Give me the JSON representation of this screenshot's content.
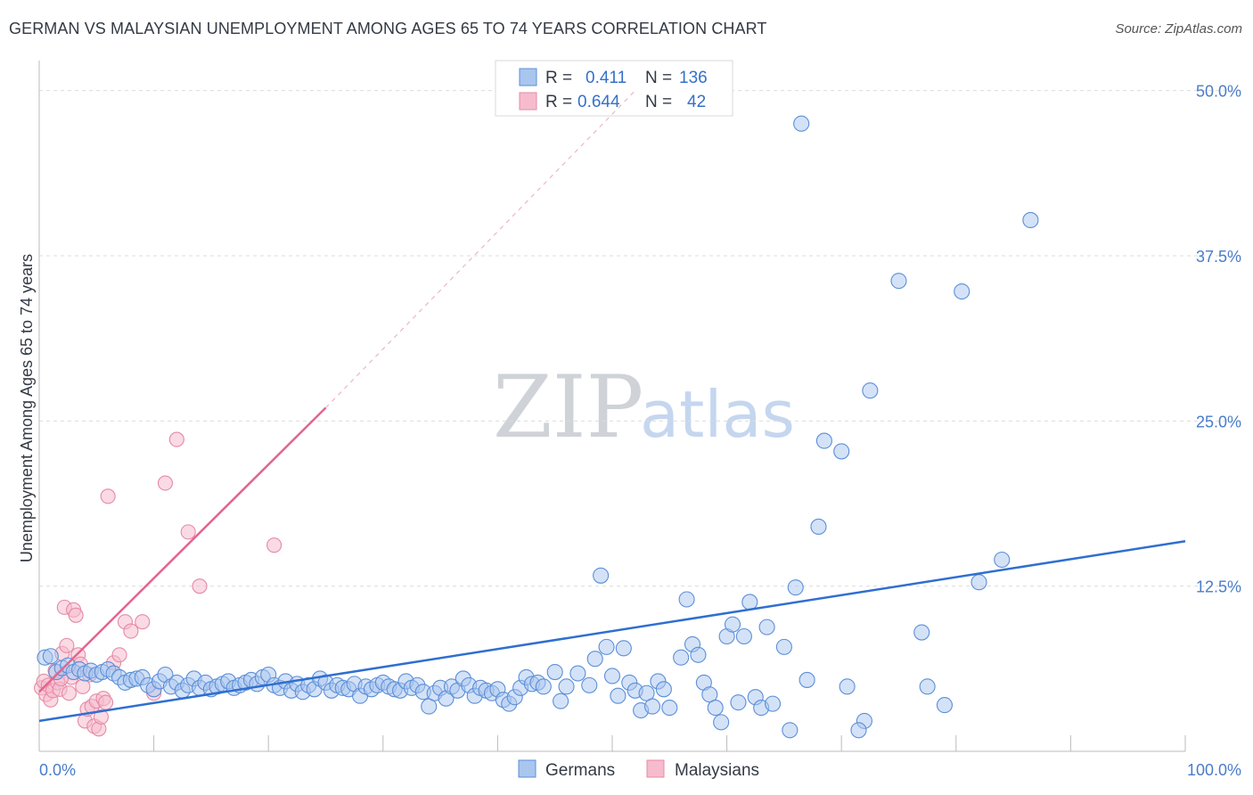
{
  "title": "GERMAN VS MALAYSIAN UNEMPLOYMENT AMONG AGES 65 TO 74 YEARS CORRELATION CHART",
  "source": "Source: ZipAtlas.com",
  "watermark": {
    "zip": "ZIP",
    "atlas": "atlas"
  },
  "legend_top": {
    "r_label": "R =",
    "n_label": "N =",
    "german": {
      "r": "0.411",
      "n": "136"
    },
    "malaysian": {
      "r": "0.644",
      "n": "42"
    }
  },
  "legend_bottom": {
    "german": "Germans",
    "malaysian": "Malaysians"
  },
  "colors": {
    "german_fill": "#a9c6ef",
    "german_stroke": "#5b8fd8",
    "german_line": "#2f6fd0",
    "malaysian_fill": "#f6bccd",
    "malaysian_stroke": "#e58aa6",
    "malaysian_line": "#e4648f",
    "grid": "#dcdcdc",
    "axis_tick_text": "#4a7cc9"
  },
  "chart_data": {
    "type": "scatter",
    "title": "GERMAN VS MALAYSIAN UNEMPLOYMENT AMONG AGES 65 TO 74 YEARS CORRELATION CHART",
    "xlabel": "",
    "ylabel": "Unemployment Among Ages 65 to 74 years",
    "xlim": [
      0,
      100
    ],
    "ylim": [
      0,
      52
    ],
    "x_tick_labels": [
      "0.0%",
      "100.0%"
    ],
    "y_ticks": [
      12.5,
      25.0,
      37.5,
      50.0
    ],
    "y_tick_labels": [
      "12.5%",
      "25.0%",
      "37.5%",
      "50.0%"
    ],
    "grid": true,
    "legend_position": "top-center",
    "series": [
      {
        "name": "Germans",
        "r": 0.411,
        "n": 136,
        "trend": {
          "x": [
            0,
            100
          ],
          "y": [
            2.3,
            15.9
          ]
        },
        "points": [
          [
            0.5,
            7.1
          ],
          [
            1.0,
            7.2
          ],
          [
            1.5,
            6.0
          ],
          [
            2.0,
            6.3
          ],
          [
            2.5,
            6.5
          ],
          [
            3.0,
            6.0
          ],
          [
            3.5,
            6.2
          ],
          [
            4.0,
            5.9
          ],
          [
            4.5,
            6.1
          ],
          [
            5.0,
            5.8
          ],
          [
            5.5,
            6.0
          ],
          [
            6.0,
            6.2
          ],
          [
            6.5,
            5.9
          ],
          [
            7.0,
            5.6
          ],
          [
            7.5,
            5.2
          ],
          [
            8.0,
            5.4
          ],
          [
            8.5,
            5.5
          ],
          [
            9.0,
            5.6
          ],
          [
            9.5,
            5.0
          ],
          [
            10.0,
            4.7
          ],
          [
            10.5,
            5.3
          ],
          [
            11.0,
            5.8
          ],
          [
            11.5,
            4.9
          ],
          [
            12.0,
            5.2
          ],
          [
            12.5,
            4.6
          ],
          [
            13.0,
            5.0
          ],
          [
            13.5,
            5.5
          ],
          [
            14.0,
            4.8
          ],
          [
            14.5,
            5.2
          ],
          [
            15.0,
            4.7
          ],
          [
            15.5,
            4.9
          ],
          [
            16.0,
            5.1
          ],
          [
            16.5,
            5.3
          ],
          [
            17.0,
            4.8
          ],
          [
            17.5,
            5.0
          ],
          [
            18.0,
            5.2
          ],
          [
            18.5,
            5.4
          ],
          [
            19.0,
            5.1
          ],
          [
            19.5,
            5.6
          ],
          [
            20.0,
            5.8
          ],
          [
            20.5,
            5.0
          ],
          [
            21.0,
            4.8
          ],
          [
            21.5,
            5.3
          ],
          [
            22.0,
            4.6
          ],
          [
            22.5,
            5.1
          ],
          [
            23.0,
            4.5
          ],
          [
            23.5,
            5.0
          ],
          [
            24.0,
            4.7
          ],
          [
            24.5,
            5.5
          ],
          [
            25.0,
            5.2
          ],
          [
            25.5,
            4.6
          ],
          [
            26.0,
            5.0
          ],
          [
            26.5,
            4.8
          ],
          [
            27.0,
            4.7
          ],
          [
            27.5,
            5.1
          ],
          [
            28.0,
            4.2
          ],
          [
            28.5,
            4.9
          ],
          [
            29.0,
            4.7
          ],
          [
            29.5,
            5.0
          ],
          [
            30.0,
            5.2
          ],
          [
            30.5,
            4.9
          ],
          [
            31.0,
            4.7
          ],
          [
            31.5,
            4.6
          ],
          [
            32.0,
            5.3
          ],
          [
            32.5,
            4.8
          ],
          [
            33.0,
            5.0
          ],
          [
            33.5,
            4.5
          ],
          [
            34.0,
            3.4
          ],
          [
            34.5,
            4.4
          ],
          [
            35.0,
            4.8
          ],
          [
            35.5,
            4.0
          ],
          [
            36.0,
            4.9
          ],
          [
            36.5,
            4.6
          ],
          [
            37.0,
            5.5
          ],
          [
            37.5,
            5.0
          ],
          [
            38.0,
            4.2
          ],
          [
            38.5,
            4.8
          ],
          [
            39.0,
            4.6
          ],
          [
            39.5,
            4.4
          ],
          [
            40.0,
            4.7
          ],
          [
            40.5,
            3.9
          ],
          [
            41.0,
            3.6
          ],
          [
            41.5,
            4.1
          ],
          [
            42.0,
            4.8
          ],
          [
            42.5,
            5.6
          ],
          [
            43.0,
            5.1
          ],
          [
            43.5,
            5.2
          ],
          [
            44.0,
            4.9
          ],
          [
            45.0,
            6.0
          ],
          [
            45.5,
            3.8
          ],
          [
            46.0,
            4.9
          ],
          [
            47.0,
            5.9
          ],
          [
            48.0,
            5.0
          ],
          [
            48.5,
            7.0
          ],
          [
            49.0,
            13.3
          ],
          [
            49.5,
            7.9
          ],
          [
            50.0,
            5.7
          ],
          [
            50.5,
            4.2
          ],
          [
            51.0,
            7.8
          ],
          [
            51.5,
            5.2
          ],
          [
            52.0,
            4.6
          ],
          [
            52.5,
            3.1
          ],
          [
            53.0,
            4.4
          ],
          [
            53.5,
            3.4
          ],
          [
            54.0,
            5.3
          ],
          [
            54.5,
            4.7
          ],
          [
            55.0,
            3.3
          ],
          [
            56.0,
            7.1
          ],
          [
            56.5,
            11.5
          ],
          [
            57.0,
            8.1
          ],
          [
            57.5,
            7.3
          ],
          [
            58.0,
            5.2
          ],
          [
            58.5,
            4.3
          ],
          [
            59.0,
            3.3
          ],
          [
            59.5,
            2.2
          ],
          [
            60.0,
            8.7
          ],
          [
            60.5,
            9.6
          ],
          [
            61.0,
            3.7
          ],
          [
            61.5,
            8.7
          ],
          [
            62.0,
            11.3
          ],
          [
            62.5,
            4.1
          ],
          [
            63.0,
            3.3
          ],
          [
            63.5,
            9.4
          ],
          [
            64.0,
            3.6
          ],
          [
            65.0,
            7.9
          ],
          [
            65.5,
            1.6
          ],
          [
            66.0,
            12.4
          ],
          [
            67.0,
            5.4
          ],
          [
            68.0,
            17.0
          ],
          [
            68.5,
            23.5
          ],
          [
            70.0,
            22.7
          ],
          [
            70.5,
            4.9
          ],
          [
            72.0,
            2.3
          ],
          [
            71.5,
            1.6
          ],
          [
            72.5,
            27.3
          ],
          [
            75.0,
            35.6
          ],
          [
            77.0,
            9.0
          ],
          [
            77.5,
            4.9
          ],
          [
            79.0,
            3.5
          ],
          [
            80.5,
            34.8
          ],
          [
            82.0,
            12.8
          ],
          [
            84.0,
            14.5
          ],
          [
            86.5,
            40.2
          ],
          [
            66.5,
            47.5
          ]
        ]
      },
      {
        "name": "Malaysians",
        "r": 0.644,
        "n": 42,
        "trend": {
          "x": [
            0,
            25
          ],
          "y": [
            4.5,
            26.0
          ]
        },
        "trend_extension": {
          "x": [
            25,
            52
          ],
          "y": [
            26.0,
            50.0
          ]
        },
        "points": [
          [
            0.2,
            4.8
          ],
          [
            0.4,
            5.3
          ],
          [
            0.6,
            4.3
          ],
          [
            0.8,
            5.0
          ],
          [
            1.0,
            3.9
          ],
          [
            1.2,
            4.6
          ],
          [
            1.4,
            6.1
          ],
          [
            1.6,
            5.2
          ],
          [
            1.8,
            4.7
          ],
          [
            2.0,
            7.4
          ],
          [
            2.2,
            10.9
          ],
          [
            2.4,
            8.0
          ],
          [
            2.6,
            4.4
          ],
          [
            2.8,
            5.6
          ],
          [
            3.0,
            10.7
          ],
          [
            3.2,
            10.3
          ],
          [
            3.4,
            7.3
          ],
          [
            3.6,
            6.6
          ],
          [
            3.8,
            4.9
          ],
          [
            4.0,
            2.3
          ],
          [
            4.2,
            3.2
          ],
          [
            4.4,
            5.8
          ],
          [
            4.6,
            3.4
          ],
          [
            4.8,
            1.9
          ],
          [
            5.0,
            3.8
          ],
          [
            5.2,
            1.7
          ],
          [
            5.4,
            2.6
          ],
          [
            5.6,
            4.0
          ],
          [
            5.8,
            3.7
          ],
          [
            6.0,
            19.3
          ],
          [
            6.5,
            6.7
          ],
          [
            7.0,
            7.3
          ],
          [
            7.5,
            9.8
          ],
          [
            8.0,
            9.1
          ],
          [
            9.0,
            9.8
          ],
          [
            10.0,
            4.4
          ],
          [
            11.0,
            20.3
          ],
          [
            12.0,
            23.6
          ],
          [
            13.0,
            16.6
          ],
          [
            14.0,
            12.5
          ],
          [
            20.5,
            15.6
          ],
          [
            1.9,
            5.5
          ]
        ]
      }
    ]
  }
}
